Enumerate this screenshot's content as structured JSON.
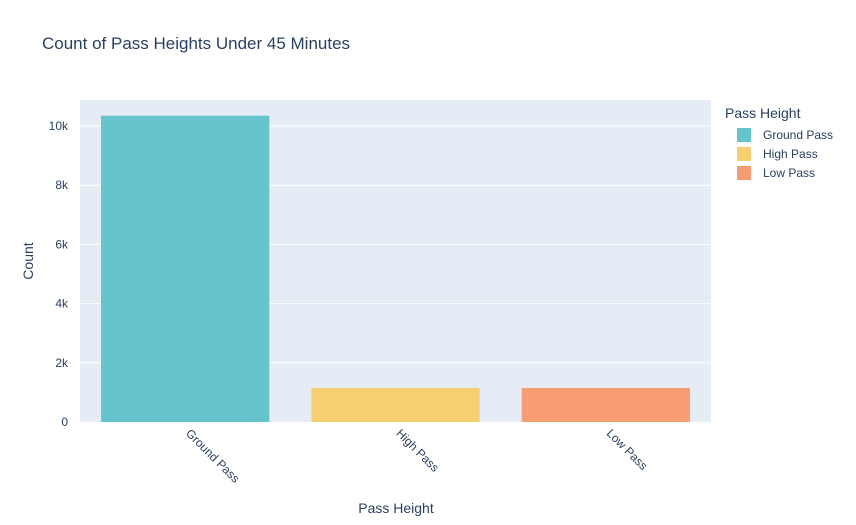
{
  "chart_data": {
    "type": "bar",
    "title": "Count of Pass Heights Under 45 Minutes",
    "xlabel": "Pass Height",
    "ylabel": "Count",
    "categories": [
      "Ground Pass",
      "High Pass",
      "Low Pass"
    ],
    "values": [
      10350,
      1150,
      1150
    ],
    "colors": [
      "#66c5cc",
      "#f6cf71",
      "#f89c74"
    ],
    "ylim": [
      0,
      10880
    ],
    "yticks": [
      0,
      2000,
      4000,
      6000,
      8000,
      10000
    ],
    "ytick_labels": [
      "0",
      "2k",
      "4k",
      "6k",
      "8k",
      "10k"
    ],
    "grid": true,
    "plot_background": "#e5ecf6",
    "legend": {
      "title": "Pass Height",
      "placement": "right",
      "entries": [
        "Ground Pass",
        "High Pass",
        "Low Pass"
      ]
    }
  }
}
